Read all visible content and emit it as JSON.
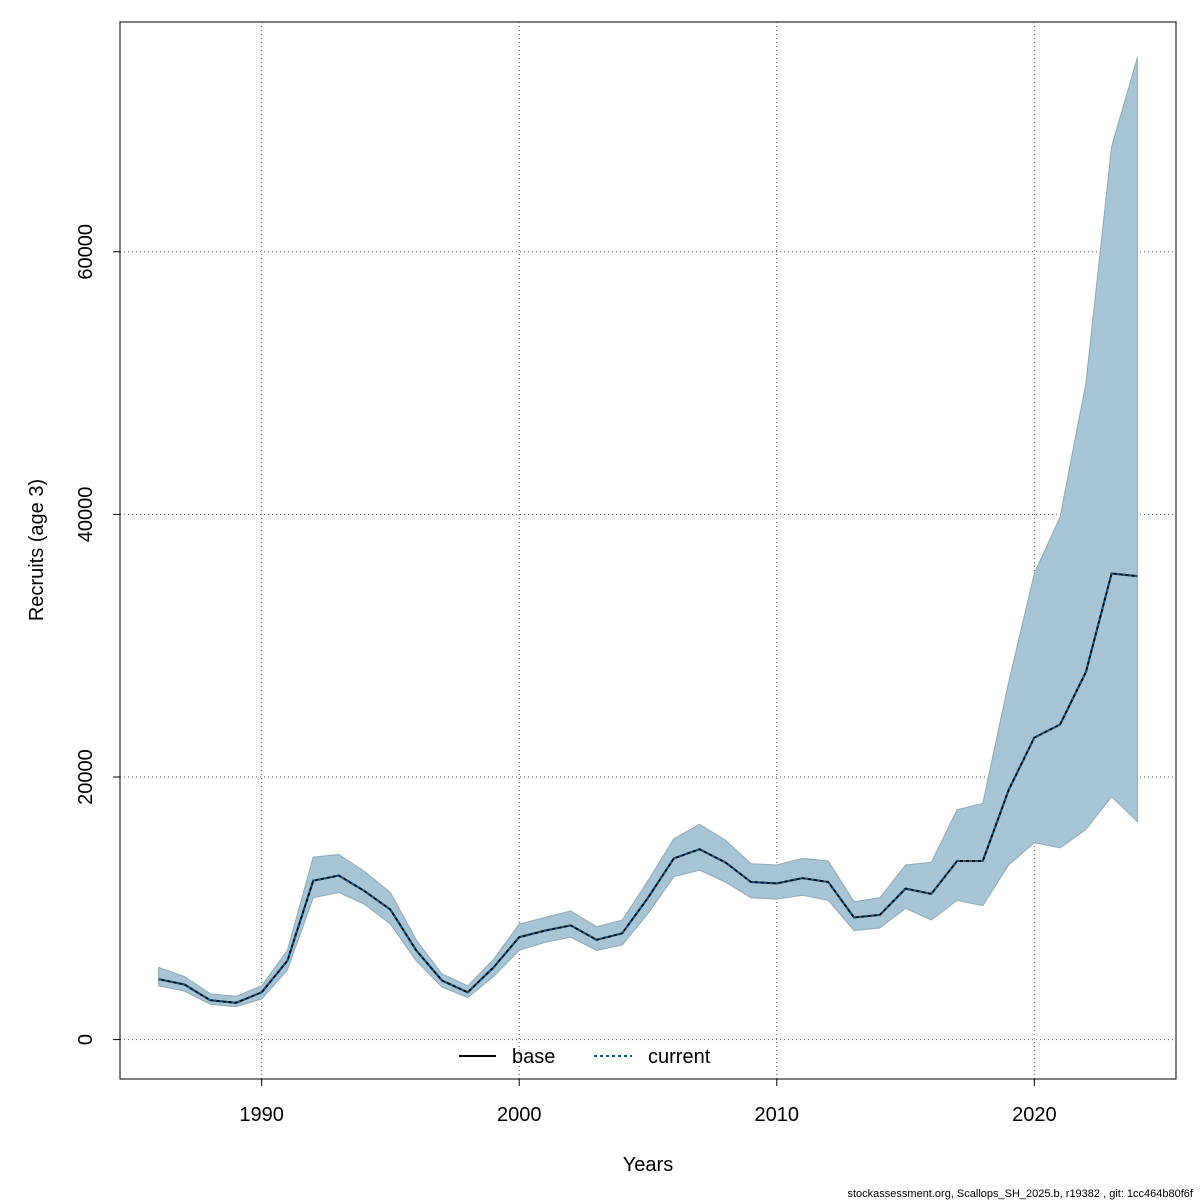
{
  "chart_data": {
    "type": "area",
    "title": "",
    "xlabel": "Years",
    "ylabel": "Recruits (age 3)",
    "xlim": [
      1984.5,
      2025.5
    ],
    "ylim": [
      -3000,
      77500
    ],
    "xticks": [
      1990,
      2000,
      2010,
      2020
    ],
    "yticks": [
      0,
      20000,
      40000,
      60000
    ],
    "grid": true,
    "legend_position": "bottom",
    "x": [
      1986,
      1987,
      1988,
      1989,
      1990,
      1991,
      1992,
      1993,
      1994,
      1995,
      1996,
      1997,
      1998,
      1999,
      2000,
      2001,
      2002,
      2003,
      2004,
      2005,
      2006,
      2007,
      2008,
      2009,
      2010,
      2011,
      2012,
      2013,
      2014,
      2015,
      2016,
      2017,
      2018,
      2019,
      2020,
      2021,
      2022,
      2023,
      2024
    ],
    "band": {
      "name": "confidence interval",
      "color": "#a5c4d5",
      "lower": [
        4100,
        3700,
        2700,
        2500,
        3100,
        5300,
        10800,
        11200,
        10300,
        8800,
        6000,
        4000,
        3200,
        4800,
        6800,
        7400,
        7800,
        6800,
        7200,
        9600,
        12400,
        12900,
        12000,
        10800,
        10700,
        11000,
        10600,
        8300,
        8500,
        10000,
        9100,
        10600,
        10200,
        13300,
        15000,
        14600,
        16000,
        18500,
        16600
      ],
      "upper": [
        5500,
        4800,
        3500,
        3300,
        4100,
        6800,
        13900,
        14100,
        12800,
        11200,
        7600,
        5000,
        4100,
        6100,
        8800,
        9300,
        9800,
        8600,
        9100,
        12100,
        15300,
        16400,
        15200,
        13400,
        13300,
        13800,
        13600,
        10500,
        10800,
        13300,
        13500,
        17500,
        18000,
        27200,
        35500,
        39800,
        50000,
        68000,
        74800
      ]
    },
    "series": [
      {
        "name": "base",
        "color": "#000000",
        "dash": "solid",
        "values": [
          4600,
          4200,
          3000,
          2800,
          3600,
          6000,
          12100,
          12500,
          11300,
          9900,
          6800,
          4500,
          3600,
          5500,
          7800,
          8300,
          8700,
          7600,
          8100,
          10800,
          13800,
          14500,
          13500,
          12000,
          11900,
          12300,
          12000,
          9300,
          9500,
          11500,
          11100,
          13600,
          13600,
          19000,
          23000,
          24000,
          28000,
          35500,
          35300
        ]
      },
      {
        "name": "current",
        "color": "#0a5a8c",
        "dash": "dotted",
        "values": [
          4600,
          4200,
          3000,
          2800,
          3600,
          6000,
          12100,
          12500,
          11300,
          9900,
          6800,
          4500,
          3600,
          5500,
          7800,
          8300,
          8700,
          7600,
          8100,
          10800,
          13800,
          14500,
          13500,
          12000,
          11900,
          12300,
          12000,
          9300,
          9500,
          11500,
          11100,
          13600,
          13600,
          19000,
          23000,
          24000,
          28000,
          35500,
          35300
        ]
      }
    ],
    "legend": [
      {
        "label": "base",
        "style": "solid",
        "color": "#000000"
      },
      {
        "label": "current",
        "style": "dotted",
        "color": "#0a5a8c"
      }
    ],
    "footer": "stockassessment.org, Scallops_SH_2025.b, r19382 , git: 1cc464b80f6f"
  }
}
